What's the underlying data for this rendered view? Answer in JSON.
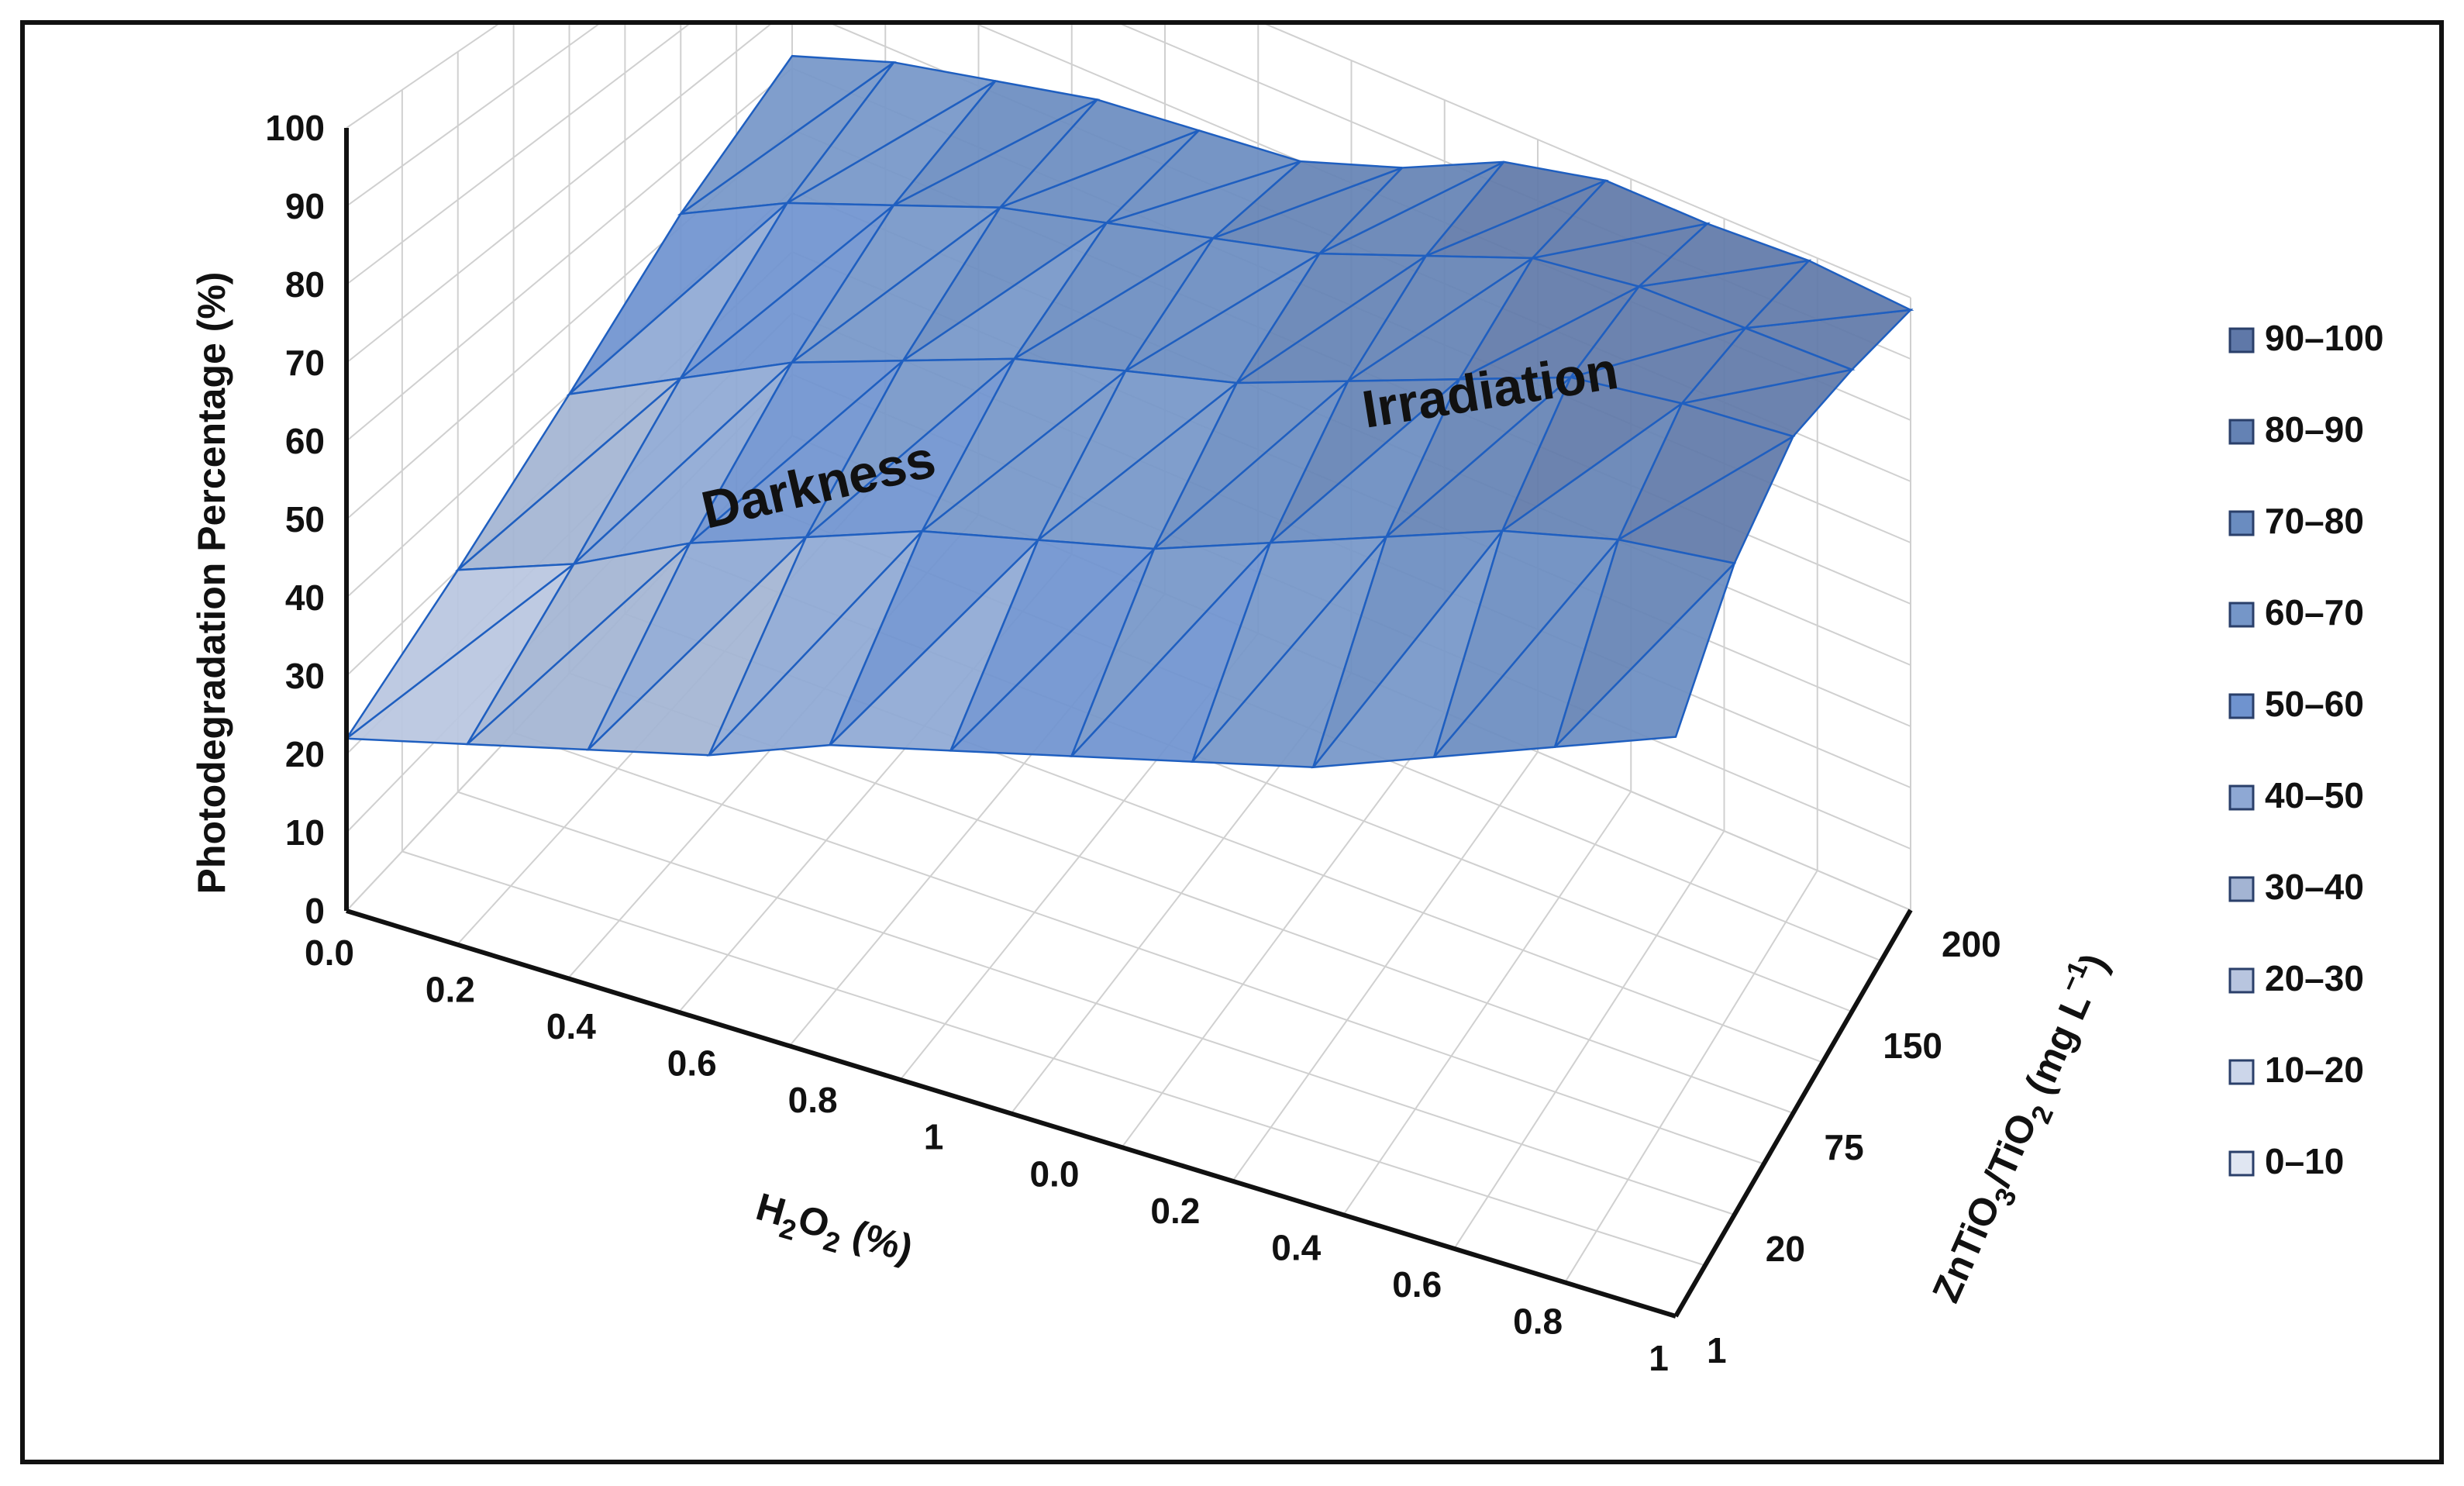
{
  "chart_data": {
    "type": "surface",
    "y_axis": {
      "title": "Photodegradation Percentage (%)",
      "ticks": [
        "0",
        "10",
        "20",
        "30",
        "40",
        "50",
        "60",
        "70",
        "80",
        "90",
        "100"
      ],
      "range": [
        0,
        100
      ]
    },
    "x_axis": {
      "title_main": "H",
      "title_sub1": "2",
      "title_mid": "O",
      "title_sub2": "2",
      "title_end": " (%)",
      "ticks": [
        "0.0",
        "0.2",
        "0.4",
        "0.6",
        "0.8",
        "1",
        "0.0",
        "0.2",
        "0.4",
        "0.6",
        "0.8",
        "1"
      ]
    },
    "depth_axis": {
      "title_parts": [
        "ZnTiO",
        "3",
        "/TiO",
        "2",
        " (mg L",
        "−1",
        ")"
      ],
      "ticks": [
        "1",
        "20",
        "75",
        "150",
        "200"
      ]
    },
    "annotations": [
      "Darkness",
      "Irradiation"
    ],
    "legend": {
      "placement": "right",
      "items": [
        {
          "label": "90–100",
          "color": "#5f78a8"
        },
        {
          "label": "80–90",
          "color": "#6482b4"
        },
        {
          "label": "70–80",
          "color": "#6a8cc0"
        },
        {
          "label": "60–70",
          "color": "#7596c8"
        },
        {
          "label": "50–60",
          "color": "#6f93cf"
        },
        {
          "label": "40–50",
          "color": "#8ea8d4"
        },
        {
          "label": "30–40",
          "color": "#a3b4d3"
        },
        {
          "label": "20–30",
          "color": "#b8c5df"
        },
        {
          "label": "10–20",
          "color": "#ccd6ea"
        },
        {
          "label": "0–10",
          "color": "#e0e6f2"
        }
      ]
    },
    "surface": {
      "x": [
        0.0,
        0.2,
        0.4,
        0.6,
        0.8,
        1,
        0.0,
        0.2,
        0.4,
        0.6,
        0.8,
        1
      ],
      "depth": [
        "1",
        "20",
        "75",
        "150",
        "200"
      ],
      "values": [
        [
          22,
          26,
          30,
          34,
          40,
          44,
          48,
          52,
          56,
          62,
          68,
          74
        ],
        [
          30,
          36,
          44,
          50,
          56,
          60,
          64,
          70,
          76,
          82,
          86,
          88
        ],
        [
          40,
          48,
          56,
          62,
          68,
          72,
          76,
          82,
          88,
          94,
          96,
          97
        ],
        [
          52,
          60,
          66,
          72,
          76,
          80,
          84,
          90,
          96,
          98,
          98,
          98
        ],
        [
          62,
          68,
          72,
          76,
          78,
          80,
          86,
          94,
          98,
          98,
          99,
          98
        ]
      ]
    },
    "colors": {
      "surface_fill": "#5f82c4",
      "surface_stroke": "#1f5fc0",
      "grid": "#d0d0d0",
      "axis": "#111111"
    }
  }
}
